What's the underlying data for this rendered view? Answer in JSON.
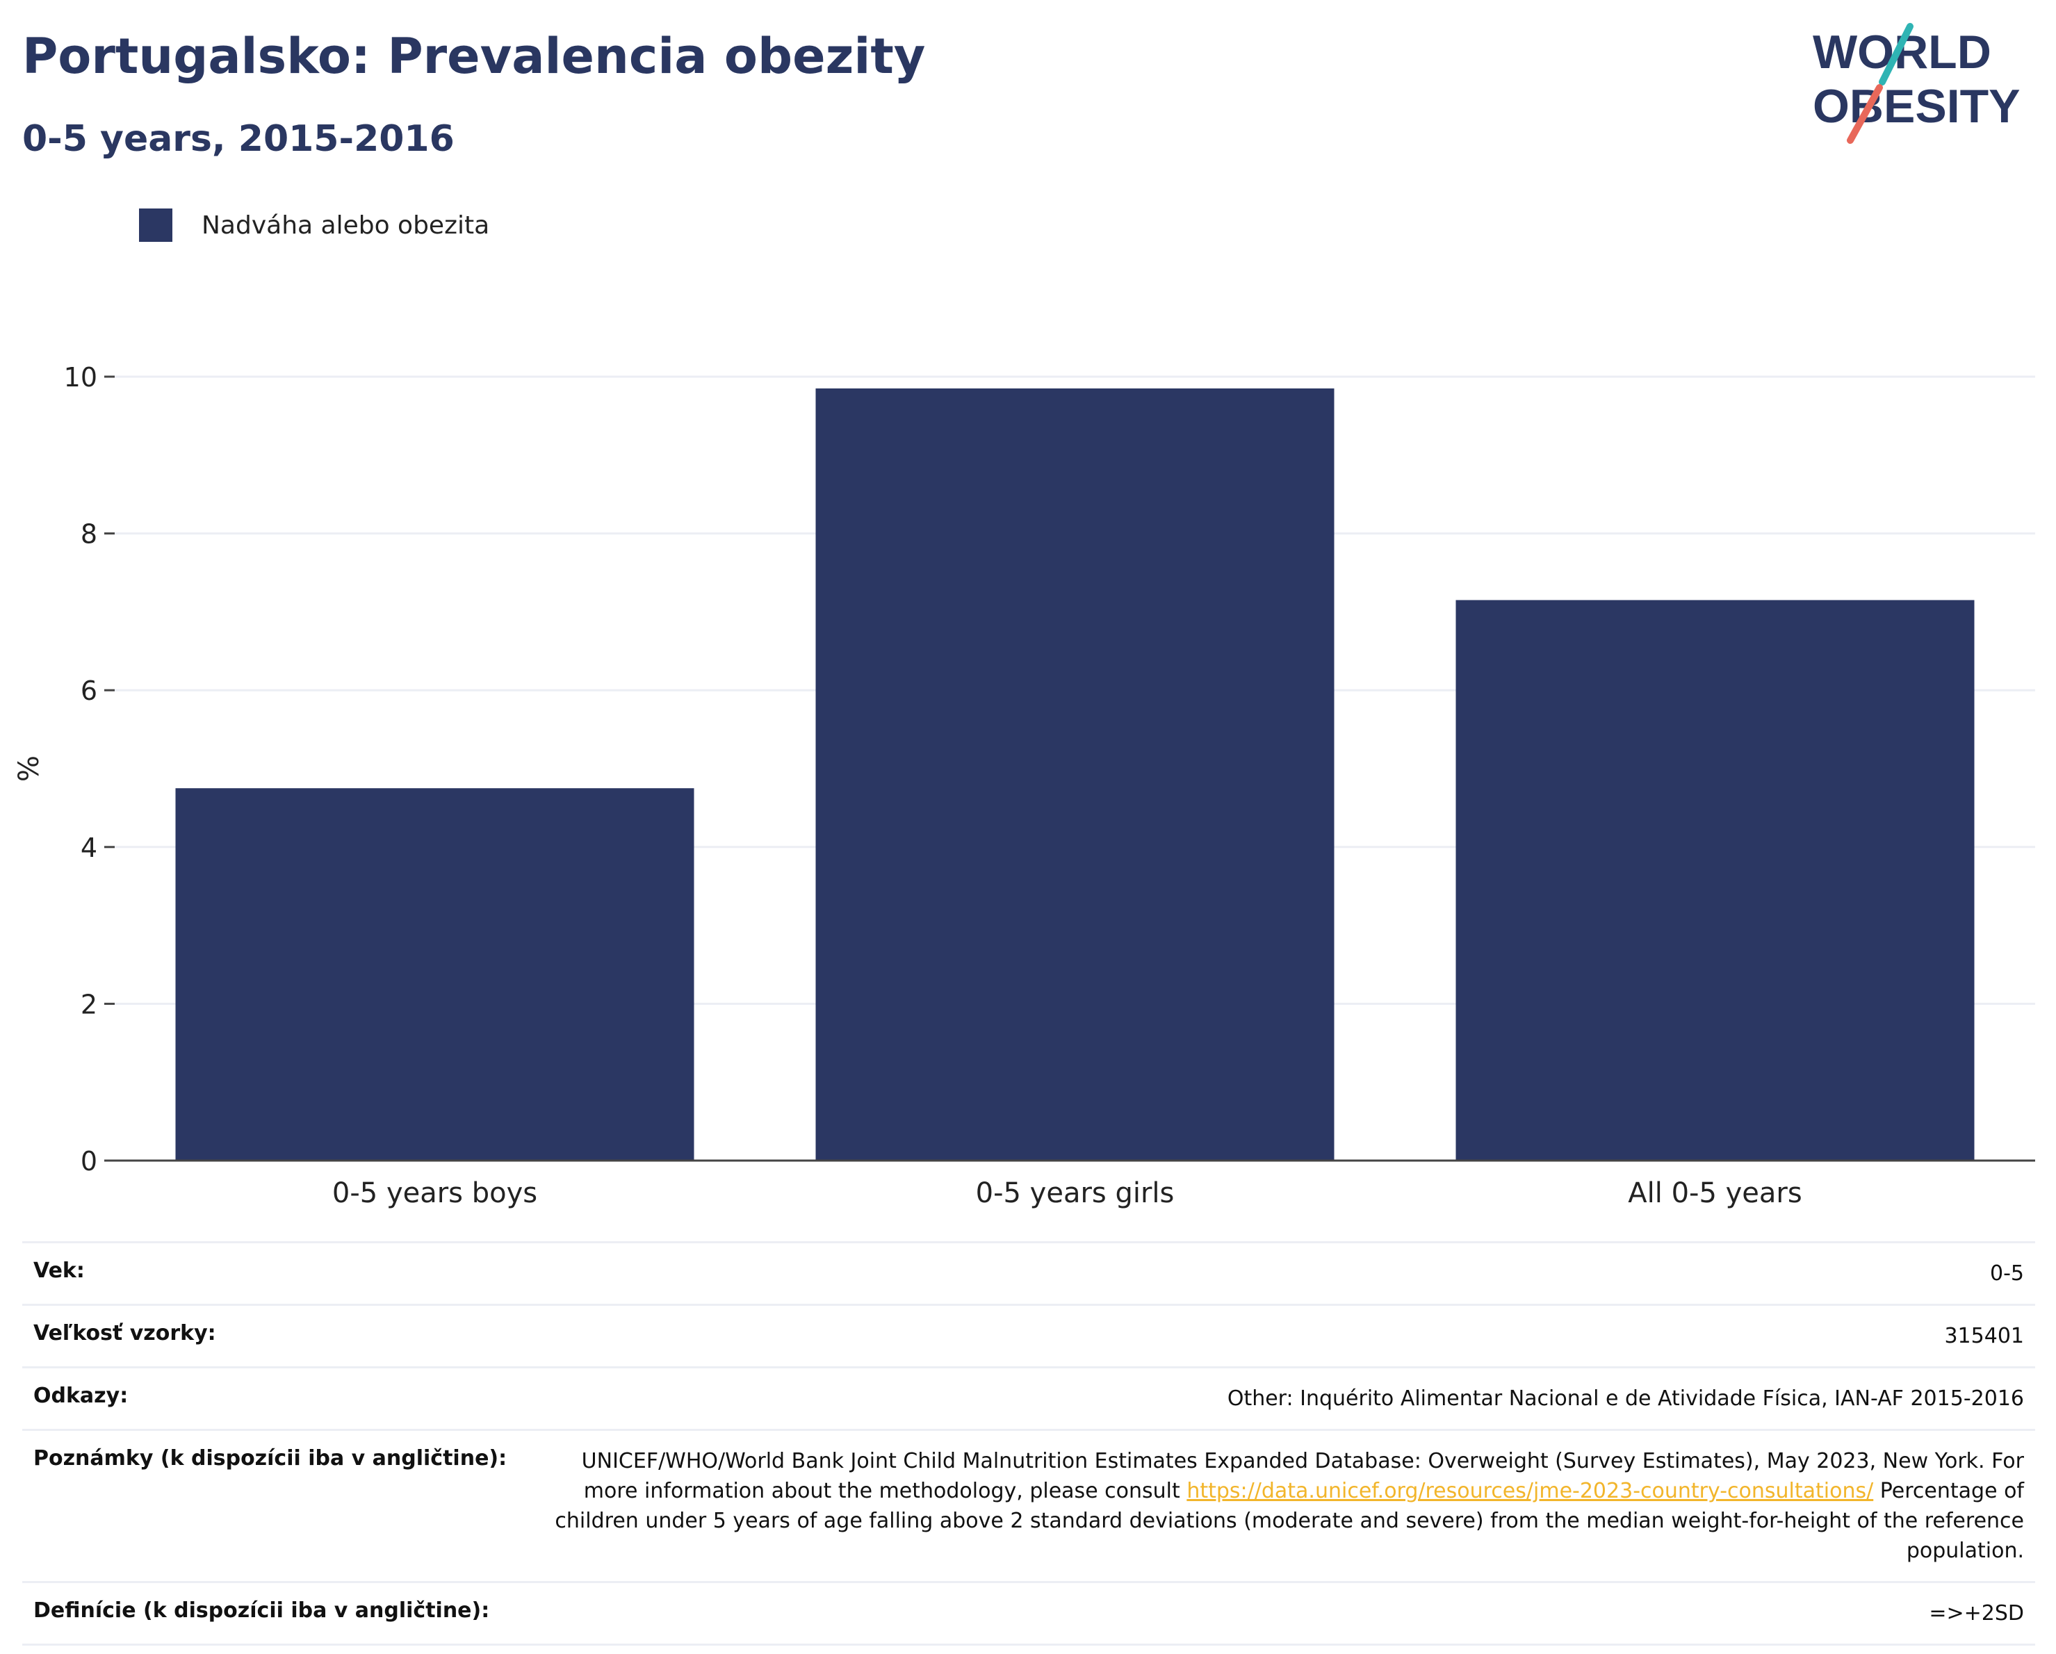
{
  "header": {
    "title": "Portugalsko: Prevalencia obezity",
    "subtitle": "0-5 years, 2015-2016",
    "logo": {
      "line1": "WORLD",
      "line2": "OBESITY"
    }
  },
  "legend": {
    "label": "Nadváha alebo obezita"
  },
  "chart_data": {
    "type": "bar",
    "title": "Portugalsko: Prevalencia obezity",
    "subtitle": "0-5 years, 2015-2016",
    "xlabel": "",
    "ylabel": "%",
    "categories": [
      "0-5 years boys",
      "0-5 years girls",
      "All 0-5 years"
    ],
    "series": [
      {
        "name": "Nadváha alebo obezita",
        "values": [
          4.75,
          9.85,
          7.15
        ]
      }
    ],
    "ylim": [
      0,
      10
    ],
    "yticks": [
      0,
      2,
      4,
      6,
      8,
      10
    ],
    "grid": true,
    "legend_position": "top-left",
    "bar_color": "#2b3763"
  },
  "info": {
    "rows": [
      {
        "label": "Vek:",
        "value": "0-5"
      },
      {
        "label": "Veľkosť vzorky:",
        "value": "315401"
      },
      {
        "label": "Odkazy:",
        "value": "Other: Inquérito Alimentar Nacional e de Atividade Física, IAN-AF 2015-2016"
      },
      {
        "label": "Poznámky (k dispozícii iba v angličtine):",
        "value_before": "UNICEF/WHO/World Bank Joint Child Malnutrition Estimates Expanded Database: Overweight (Survey Estimates), May 2023, New York. For more information about the methodology, please consult ",
        "link": "https://data.unicef.org/resources/jme-2023-country-consultations/",
        "value_after": " Percentage of children under 5 years of age falling above 2 standard deviations (moderate and severe) from the median weight-for-height of the reference population."
      },
      {
        "label": "Definície (k dispozícii iba v angličtine):",
        "value": "=>+2SD"
      }
    ]
  },
  "colors": {
    "title": "#2a3761",
    "bar": "#2b3763",
    "logo_teal": "#2fb4b4",
    "logo_coral": "#e8685a",
    "link": "#f2b52b",
    "grid": "#eceef4"
  }
}
